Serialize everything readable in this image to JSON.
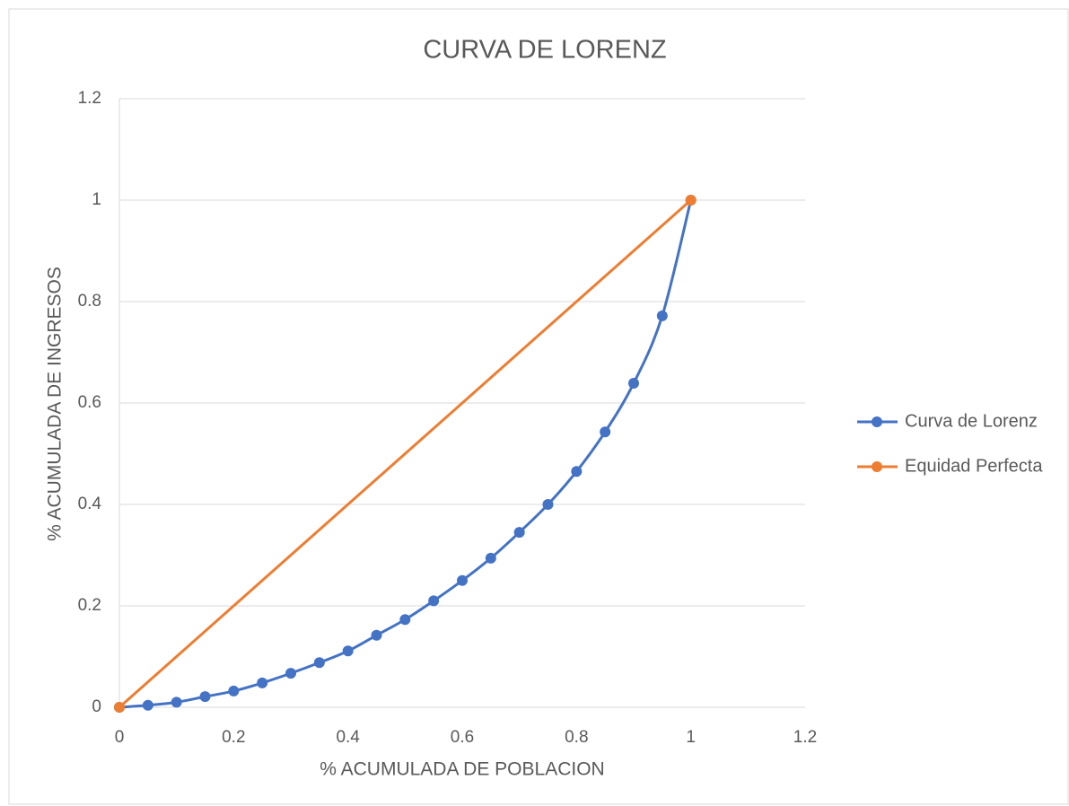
{
  "chart_data": {
    "type": "scatter",
    "title": "CURVA DE LORENZ",
    "x_label": "% ACUMULADA DE POBLACION",
    "y_label": "% ACUMULADA DE INGRESOS",
    "xlim": [
      0,
      1.2
    ],
    "xticks": [
      0,
      0.2,
      0.4,
      0.6,
      0.8,
      1,
      1.2
    ],
    "ylim": [
      0,
      1.2
    ],
    "yticks": [
      0,
      0.2,
      0.4,
      0.6,
      0.8,
      1,
      1.2
    ],
    "grid": true,
    "smooth": true,
    "legend": "right",
    "series": [
      {
        "name": "Curva de Lorenz",
        "color": "#4472c4",
        "x": [
          0,
          0.05,
          0.1,
          0.15,
          0.2,
          0.25,
          0.3,
          0.35,
          0.4,
          0.45,
          0.5,
          0.55,
          0.6,
          0.65,
          0.7,
          0.75,
          0.8,
          0.85,
          0.9,
          0.95,
          1
        ],
        "values": [
          0,
          0.004,
          0.01,
          0.021,
          0.032,
          0.048,
          0.067,
          0.088,
          0.111,
          0.142,
          0.173,
          0.21,
          0.25,
          0.294,
          0.345,
          0.4,
          0.465,
          0.543,
          0.639,
          0.772,
          1
        ]
      },
      {
        "name": "Equidad Perfecta",
        "color": "#ed7d31",
        "x": [
          0,
          1
        ],
        "values": [
          0,
          1
        ]
      }
    ]
  }
}
